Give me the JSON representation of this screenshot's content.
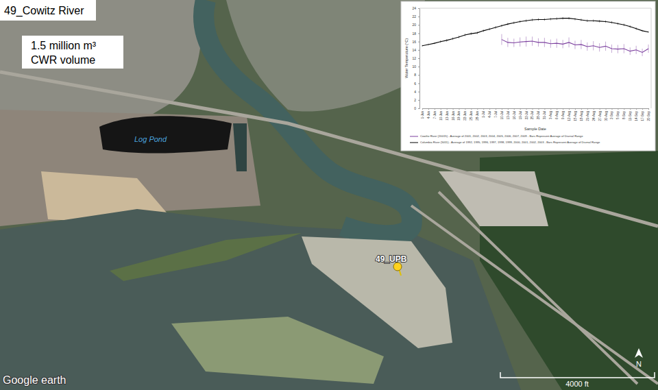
{
  "map": {
    "title": "49_Cowitz River",
    "volume_label": [
      "1.5 million m³",
      "CWR volume"
    ],
    "log_pond": "Log Pond",
    "site": "49_UPB",
    "attribution": "Google earth",
    "scale_bar": "4000 ft",
    "north": "N"
  },
  "chart_data": {
    "type": "line",
    "x_label": "Sample Date",
    "y_label": "Water Temperature (°C)",
    "categories": [
      "1-Jun",
      "4-Jun",
      "7-Jun",
      "10-Jun",
      "13-Jun",
      "16-Jun",
      "19-Jun",
      "22-Jun",
      "25-Jun",
      "28-Jun",
      "1-Jul",
      "4-Jul",
      "7-Jul",
      "10-Jul",
      "13-Jul",
      "16-Jul",
      "19-Jul",
      "22-Jul",
      "25-Jul",
      "28-Jul",
      "31-Jul",
      "3-Aug",
      "6-Aug",
      "9-Aug",
      "12-Aug",
      "15-Aug",
      "18-Aug",
      "21-Aug",
      "24-Aug",
      "27-Aug",
      "30-Aug",
      "2-Sep",
      "5-Sep",
      "8-Sep",
      "11-Sep",
      "14-Sep",
      "17-Sep",
      "20-Sep"
    ],
    "ylim": [
      0,
      24
    ],
    "yticks": [
      0,
      2,
      4,
      6,
      8,
      10,
      12,
      14,
      16,
      18,
      20,
      22,
      24
    ],
    "legend": "bottom-left",
    "series": [
      {
        "name": "Cowlitz River (20015) - Average of 2001, 2002, 2003, 2004, 2005, 2006, 2007, 2009 - Bars Represent Average of Diurnal Range",
        "color": "#7b3f9e",
        "values": [
          null,
          null,
          null,
          null,
          null,
          null,
          null,
          null,
          null,
          null,
          null,
          null,
          null,
          16.5,
          15.8,
          15.7,
          15.9,
          16.0,
          16.1,
          15.8,
          15.8,
          15.5,
          15.6,
          15.4,
          15.8,
          15.2,
          15.3,
          14.8,
          15.0,
          14.6,
          14.9,
          14.3,
          14.2,
          14.3,
          13.7,
          14.0,
          13.4,
          14.3
        ],
        "errors": [
          null,
          null,
          null,
          null,
          null,
          null,
          null,
          null,
          null,
          null,
          null,
          null,
          null,
          1.3,
          1.1,
          1.0,
          1.1,
          1.2,
          1.1,
          1.0,
          1.1,
          1.0,
          1.1,
          1.0,
          1.2,
          1.0,
          1.1,
          1.0,
          1.1,
          1.0,
          1.1,
          1.0,
          1.0,
          1.1,
          0.9,
          1.0,
          0.9,
          1.0
        ]
      },
      {
        "name": "Columbia River (5011) - Average of 1992, 1995, 1996, 1997, 1998, 1999, 2000, 2001, 2002, 2003 - Bars Represent Average of Diurnal Range",
        "color": "#000000",
        "values": [
          15.0,
          15.3,
          15.6,
          16.0,
          16.3,
          16.7,
          17.1,
          17.6,
          17.9,
          18.1,
          18.6,
          19.0,
          19.4,
          19.8,
          20.2,
          20.5,
          20.8,
          21.0,
          21.2,
          21.3,
          21.3,
          21.4,
          21.5,
          21.6,
          21.6,
          21.4,
          21.2,
          21.0,
          21.0,
          20.9,
          20.8,
          20.6,
          20.3,
          20.0,
          19.6,
          19.1,
          18.6,
          18.3
        ],
        "errors": [
          0.2,
          0.2,
          0.2,
          0.3,
          0.3,
          0.3,
          0.3,
          0.3,
          0.3,
          0.3,
          0.3,
          0.3,
          0.3,
          0.3,
          0.3,
          0.3,
          0.3,
          0.3,
          0.3,
          0.3,
          0.3,
          0.3,
          0.3,
          0.3,
          0.3,
          0.3,
          0.3,
          0.3,
          0.3,
          0.3,
          0.3,
          0.3,
          0.3,
          0.3,
          0.3,
          0.3,
          0.2,
          0.2
        ]
      }
    ]
  }
}
